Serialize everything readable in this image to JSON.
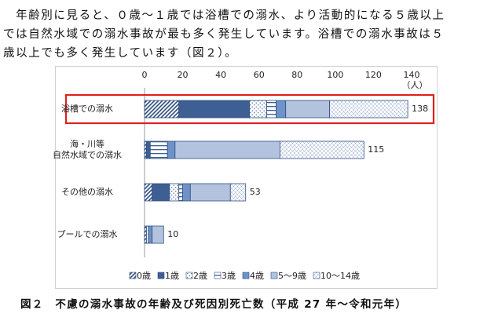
{
  "paragraph": [
    "　年齢別に見ると、０歳～１歳では浴槽での溺水、より活動的になる５歳以上",
    "では自然水域での溺水事故が最も多く発生しています。浴槽での溺水事故は５",
    "歳以上でも多く発生しています（図２）。"
  ],
  "chart_data": {
    "type": "stacked-bar-horizontal",
    "unit": "（人）",
    "categories": [
      "浴槽での溺水",
      "海・川等\n自然水域での溺水",
      "その他の溺水",
      "プールでの溺水"
    ],
    "series": [
      {
        "name": "0歳",
        "color": "#2f4f80",
        "pattern": "diagonal",
        "values": [
          18,
          1,
          4,
          1
        ]
      },
      {
        "name": "1歳",
        "color": "#3d5f94",
        "pattern": "solid",
        "values": [
          37,
          2,
          9,
          0
        ]
      },
      {
        "name": "2歳",
        "color": "#3d5f94",
        "pattern": "dots",
        "values": [
          9,
          0,
          5,
          1
        ]
      },
      {
        "name": "3歳",
        "color": "#3d5f94",
        "pattern": "hlines",
        "values": [
          5,
          9,
          2,
          0
        ]
      },
      {
        "name": "4歳",
        "color": "#6f93c8",
        "pattern": "solid",
        "values": [
          5,
          4,
          4,
          2
        ]
      },
      {
        "name": "5～9歳",
        "color": "#b3c3dd",
        "pattern": "solid",
        "values": [
          23,
          55,
          21,
          6
        ]
      },
      {
        "name": "10～14歳",
        "color": "#8aa2c8",
        "pattern": "cross",
        "values": [
          41,
          44,
          8,
          0
        ]
      }
    ],
    "totals": [
      138,
      115,
      53,
      10
    ],
    "xlim": [
      0,
      140
    ],
    "xticks": [
      0,
      20,
      40,
      60,
      80,
      100,
      120,
      140
    ],
    "highlight": 0
  },
  "caption": "図２　不慮の溺水事故の年齢及び死因別死亡数（平成 27 年～令和元年）"
}
